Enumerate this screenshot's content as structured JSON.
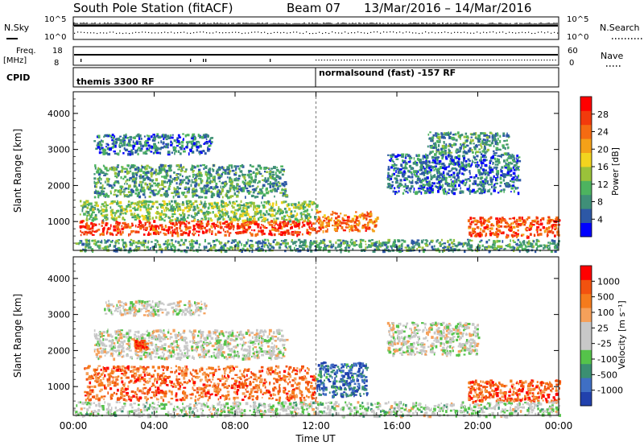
{
  "title": {
    "station": "South Pole Station (fitACF)",
    "beam": "Beam 07",
    "dates": "13/Mar/2016 – 14/Mar/2016"
  },
  "header_panels": {
    "nsky_label": "N.Sky",
    "nsearch_label": "N.Search",
    "nsky_ticks": [
      "10^5",
      "10^0"
    ],
    "nsearch_ticks": [
      "10^5",
      "10^0"
    ],
    "freq_label_1": "Freq.",
    "freq_label_2": "[MHz]",
    "freq_ticks": [
      "18",
      "8"
    ],
    "nave_label": "Nave",
    "nave_ticks": [
      "60",
      "0"
    ],
    "cpid_label": "CPID",
    "cpid_segments": [
      {
        "text": "themis 3300 RF",
        "start_hour": 0
      },
      {
        "text": "normalsound (fast) -157 RF",
        "start_hour": 12
      }
    ]
  },
  "chart_data": [
    {
      "type": "heatmap",
      "name": "power",
      "ylabel": "Slant Range [km]",
      "ylim": [
        200,
        4600
      ],
      "yticks": [
        "1000",
        "2000",
        "3000",
        "4000"
      ],
      "xlim_hours": [
        0,
        24
      ],
      "colorbar_label": "Power [dB]",
      "colorbar_ticks": [
        "4",
        "8",
        "12",
        "16",
        "20",
        "24",
        "28"
      ],
      "colorscale": [
        "#0000ff",
        "#2d58a6",
        "#3f8f78",
        "#4db35f",
        "#9ac23a",
        "#f2d41f",
        "#f4a118",
        "#f56b12",
        "#f23a0c",
        "#ff0000"
      ],
      "regions": [
        {
          "t0": 0.3,
          "t1": 12,
          "r0": 650,
          "r1": 1050,
          "level": 0.85
        },
        {
          "t0": 0.3,
          "t1": 12,
          "r0": 1050,
          "r1": 1600,
          "level": 0.4
        },
        {
          "t0": 12,
          "t1": 15,
          "r0": 750,
          "r1": 1300,
          "level": 0.75
        },
        {
          "t0": 19.5,
          "t1": 24,
          "r0": 600,
          "r1": 1150,
          "level": 0.82
        },
        {
          "t0": 1,
          "t1": 10.5,
          "r0": 1700,
          "r1": 2600,
          "level": 0.3
        },
        {
          "t0": 1,
          "t1": 6.8,
          "r0": 2900,
          "r1": 3450,
          "level": 0.2
        },
        {
          "t0": 15.5,
          "t1": 22,
          "r0": 1800,
          "r1": 2900,
          "level": 0.2
        },
        {
          "t0": 17.5,
          "t1": 21.5,
          "r0": 2900,
          "r1": 3500,
          "level": 0.28
        },
        {
          "t0": 0,
          "t1": 24,
          "r0": 200,
          "r1": 520,
          "level": 0.3
        }
      ]
    },
    {
      "type": "heatmap",
      "name": "velocity",
      "ylabel": "Slant Range [km]",
      "ylim": [
        200,
        4600
      ],
      "yticks": [
        "1000",
        "2000",
        "3000",
        "4000"
      ],
      "xlim_hours": [
        0,
        24
      ],
      "xticks": [
        "00:00",
        "04:00",
        "08:00",
        "12:00",
        "16:00",
        "20:00",
        "00:00"
      ],
      "xlabel": "Time UT",
      "colorbar_label": "Velocity [m s⁻¹]",
      "colorbar_ticks": [
        "1000",
        "500",
        "100",
        "25",
        "-25",
        "-100",
        "-500",
        "-1000"
      ],
      "colorscale": [
        "#2141ad",
        "#3f6fc4",
        "#3b8f72",
        "#55c34a",
        "#c8c8c8",
        "#c8c8c8",
        "#f5a05a",
        "#f57b1c",
        "#f2520f",
        "#ff0000"
      ],
      "regions": [
        {
          "t0": 0.5,
          "t1": 12,
          "r0": 650,
          "r1": 1600,
          "level": 0.78
        },
        {
          "t0": 12,
          "t1": 14.5,
          "r0": 750,
          "r1": 1700,
          "level": 0.15
        },
        {
          "t0": 19.5,
          "t1": 24,
          "r0": 600,
          "r1": 1200,
          "level": 0.82
        },
        {
          "t0": 1,
          "t1": 10.5,
          "r0": 1800,
          "r1": 2600,
          "level": 0.5
        },
        {
          "t0": 1.5,
          "t1": 6.5,
          "r0": 3000,
          "r1": 3400,
          "level": 0.5
        },
        {
          "t0": 15.5,
          "t1": 20,
          "r0": 1900,
          "r1": 2800,
          "level": 0.5
        },
        {
          "t0": 3,
          "t1": 3.6,
          "r0": 2050,
          "r1": 2300,
          "level": 0.85
        },
        {
          "t0": 0,
          "t1": 24,
          "r0": 200,
          "r1": 600,
          "level": 0.45
        }
      ]
    }
  ]
}
